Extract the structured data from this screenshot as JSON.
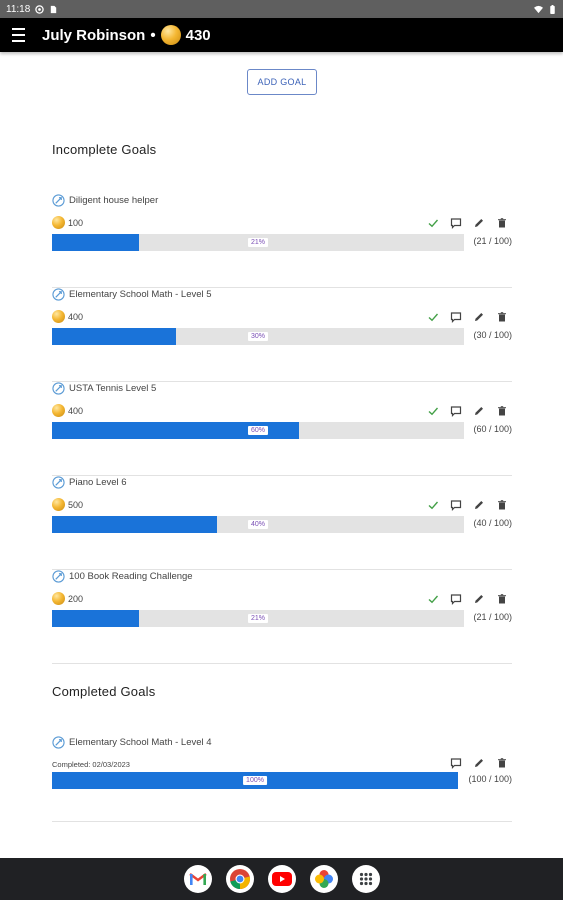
{
  "status_bar": {
    "time": "11:18"
  },
  "app_bar": {
    "user_name": "July Robinson",
    "separator": "•",
    "coins": "430"
  },
  "add_goal_label": "ADD GOAL",
  "incomplete_title": "Incomplete Goals",
  "completed_title": "Completed Goals",
  "incomplete_goals": [
    {
      "name": "Diligent house helper",
      "points": "100",
      "percent_label": "21%",
      "progress": 0.21,
      "count": "(21 / 100)"
    },
    {
      "name": "Elementary School Math - Level 5",
      "points": "400",
      "percent_label": "30%",
      "progress": 0.3,
      "count": "(30 / 100)"
    },
    {
      "name": "USTA Tennis Level 5",
      "points": "400",
      "percent_label": "60%",
      "progress": 0.6,
      "count": "(60 / 100)"
    },
    {
      "name": "Piano Level 6",
      "points": "500",
      "percent_label": "40%",
      "progress": 0.4,
      "count": "(40 / 100)"
    },
    {
      "name": "100 Book Reading Challenge",
      "points": "200",
      "percent_label": "21%",
      "progress": 0.21,
      "count": "(21 / 100)"
    }
  ],
  "completed_goals": [
    {
      "name": "Elementary School Math - Level 4",
      "completed_label": "Completed: 02/03/2023",
      "percent_label": "100%",
      "progress": 1.0,
      "count": "(100 / 100)"
    }
  ],
  "colors": {
    "progress_fill": "#1a73d9",
    "progress_track": "#e3e3e3",
    "check_green": "#43a047",
    "percent_text": "#7a4fb5",
    "app_bar": "#000000"
  },
  "icons": {
    "goal": "goal-arrow-icon",
    "points": "coin-icon",
    "complete": "check-icon",
    "comment": "comment-icon",
    "edit": "pencil-icon",
    "delete": "trash-icon"
  },
  "dock": [
    "Gmail",
    "Chrome",
    "YouTube",
    "Photos",
    "Apps"
  ]
}
